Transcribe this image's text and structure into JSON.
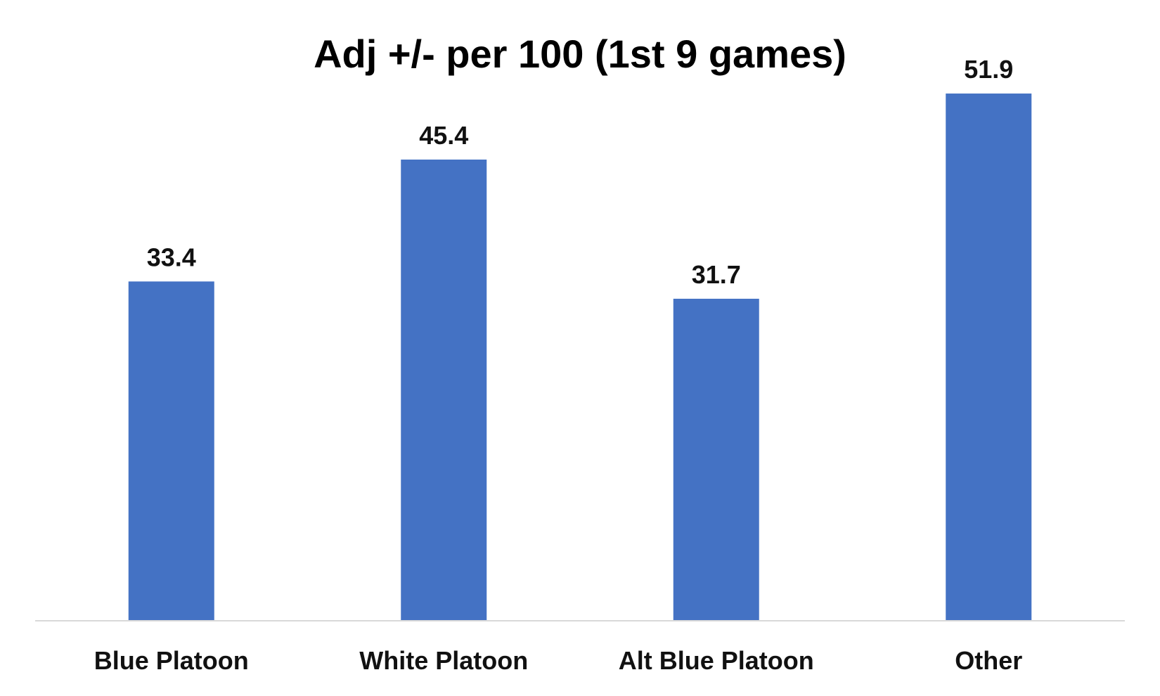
{
  "chart_data": {
    "type": "bar",
    "title": "Adj +/- per 100 (1st 9 games)",
    "xlabel": "",
    "ylabel": "",
    "categories": [
      "Blue Platoon",
      "White Platoon",
      "Alt Blue Platoon",
      "Other"
    ],
    "values": [
      33.4,
      45.4,
      31.7,
      51.9
    ],
    "data_labels": [
      "33.4",
      "45.4",
      "31.7",
      "51.9"
    ],
    "ylim": [
      0,
      60
    ],
    "grid": false,
    "legend": "none",
    "colors": {
      "bar": "#4472C4",
      "axis": "#D9D9D9",
      "text": "#111111",
      "background": "#FFFFFF"
    }
  }
}
